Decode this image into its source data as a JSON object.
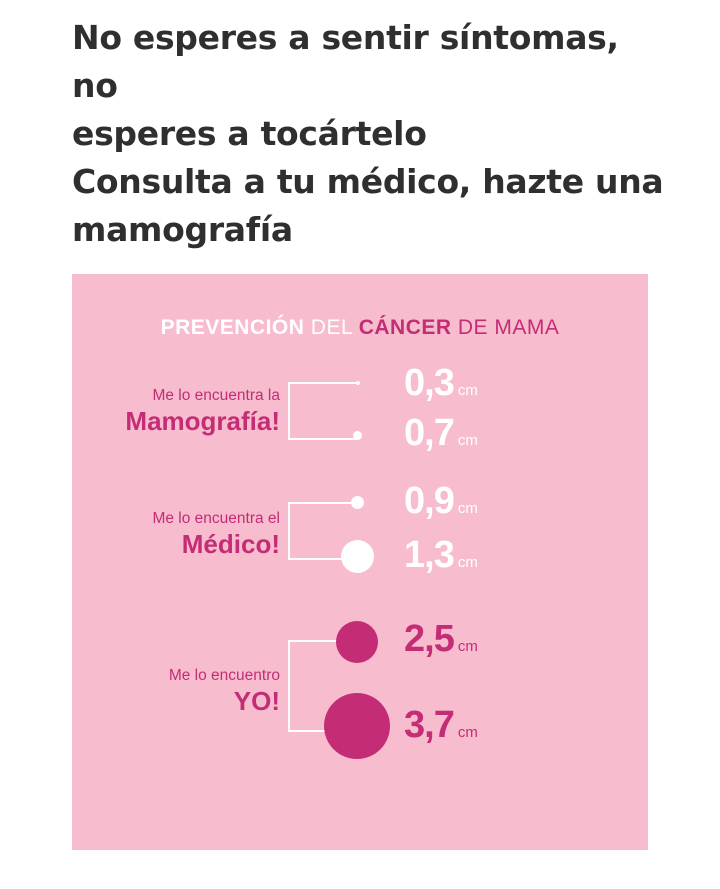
{
  "headline": {
    "line1": "No esperes a sentir síntomas, no",
    "line2": "esperes a tocártelo",
    "line3": "Consulta a tu médico, hazte una",
    "line4": "mamografía"
  },
  "infographic": {
    "title": {
      "part1": "PREVENCIÓN",
      "part2": "DEL",
      "part3": "CÁNCER",
      "part4": "DE MAMA"
    },
    "groups": [
      {
        "small_label": "Me lo encuentra la",
        "big_label": "Mamografía!",
        "items": [
          {
            "value": "0,3",
            "unit": "cm"
          },
          {
            "value": "0,7",
            "unit": "cm"
          }
        ]
      },
      {
        "small_label": "Me lo encuentra el",
        "big_label": "Médico!",
        "items": [
          {
            "value": "0,9",
            "unit": "cm"
          },
          {
            "value": "1,3",
            "unit": "cm"
          }
        ]
      },
      {
        "small_label": "Me lo encuentro",
        "big_label": "YO!",
        "items": [
          {
            "value": "2,5",
            "unit": "cm"
          },
          {
            "value": "3,7",
            "unit": "cm"
          }
        ]
      }
    ],
    "colors": {
      "background": "#f7bccd",
      "accent": "#c42d76",
      "white": "#ffffff"
    }
  }
}
